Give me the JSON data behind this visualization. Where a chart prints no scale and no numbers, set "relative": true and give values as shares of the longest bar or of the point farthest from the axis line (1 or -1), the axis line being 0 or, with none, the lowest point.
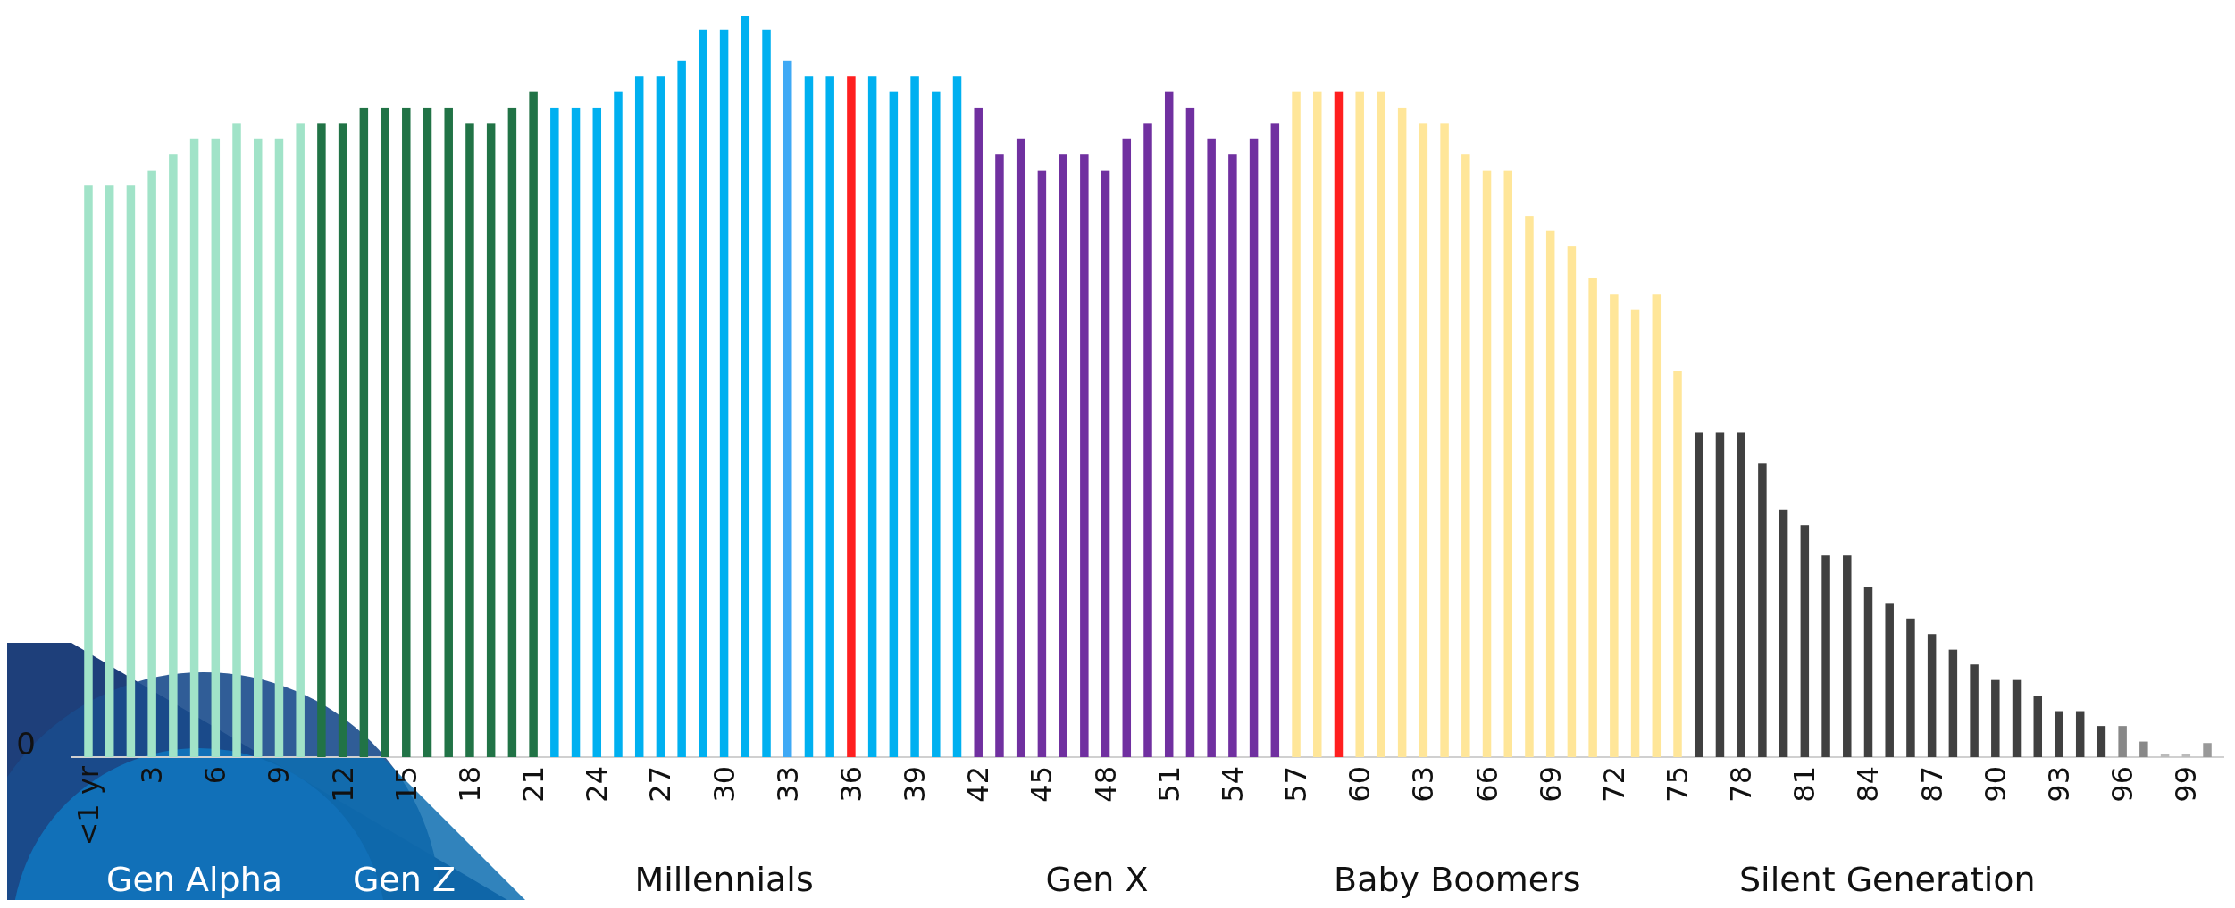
{
  "chart_data": {
    "type": "bar",
    "relative": true,
    "categories": [
      "<1 yr",
      null,
      null,
      "3",
      null,
      null,
      "6",
      null,
      null,
      "9",
      null,
      null,
      "12",
      null,
      null,
      "15",
      null,
      null,
      "18",
      null,
      null,
      "21",
      null,
      null,
      "24",
      null,
      null,
      "27",
      null,
      null,
      "30",
      null,
      null,
      "33",
      null,
      null,
      "36",
      null,
      null,
      "39",
      null,
      null,
      "42",
      null,
      null,
      "45",
      null,
      null,
      "48",
      null,
      null,
      "51",
      null,
      null,
      "54",
      null,
      null,
      "57",
      null,
      null,
      "60",
      null,
      null,
      "63",
      null,
      null,
      "66",
      null,
      null,
      "69",
      null,
      null,
      "72",
      null,
      null,
      "75",
      null,
      null,
      "78",
      null,
      null,
      "81",
      null,
      null,
      "84",
      null,
      null,
      "87",
      null,
      null,
      "90",
      null,
      null,
      "93",
      null,
      null,
      "96",
      null,
      null,
      "99",
      null
    ],
    "values": [
      0.772,
      0.772,
      0.772,
      0.792,
      0.813,
      0.834,
      0.834,
      0.855,
      0.834,
      0.834,
      0.855,
      0.855,
      0.855,
      0.876,
      0.876,
      0.876,
      0.876,
      0.876,
      0.855,
      0.855,
      0.876,
      0.898,
      0.876,
      0.876,
      0.876,
      0.898,
      0.919,
      0.919,
      0.94,
      0.981,
      0.981,
      1,
      0.981,
      0.94,
      0.919,
      0.919,
      0.919,
      0.919,
      0.898,
      0.919,
      0.898,
      0.919,
      0.876,
      0.813,
      0.834,
      0.792,
      0.813,
      0.813,
      0.792,
      0.834,
      0.855,
      0.898,
      0.876,
      0.834,
      0.813,
      0.834,
      0.855,
      0.898,
      0.898,
      0.898,
      0.898,
      0.898,
      0.876,
      0.855,
      0.855,
      0.813,
      0.792,
      0.792,
      0.73,
      0.71,
      0.689,
      0.647,
      0.625,
      0.604,
      0.625,
      0.521,
      0.438,
      0.438,
      0.438,
      0.396,
      0.334,
      0.313,
      0.272,
      0.272,
      0.23,
      0.208,
      0.187,
      0.166,
      0.145,
      0.125,
      0.104,
      0.104,
      0.083,
      0.062,
      0.062,
      0.042,
      0.042,
      0.021,
      0.004,
      0.004,
      0.019
    ],
    "colors": [
      "#a1e3c8",
      "#a1e3c8",
      "#a1e3c8",
      "#a1e3c8",
      "#a1e3c8",
      "#a1e3c8",
      "#a1e3c8",
      "#a1e3c8",
      "#a1e3c8",
      "#a1e3c8",
      "#a1e3c8",
      "#217346",
      "#217346",
      "#217346",
      "#217346",
      "#217346",
      "#217346",
      "#217346",
      "#217346",
      "#217346",
      "#217346",
      "#217346",
      "#00b0f0",
      "#00b0f0",
      "#00b0f0",
      "#00b0f0",
      "#00b0f0",
      "#00b0f0",
      "#00b0f0",
      "#00b0f0",
      "#00b0f0",
      "#00b0f0",
      "#00b0f0",
      "#3fa9f5",
      "#00b0f0",
      "#00b0f0",
      "#ff1f1f",
      "#00b0f0",
      "#00b0f0",
      "#00b0f0",
      "#00b0f0",
      "#00b0f0",
      "#7030a0",
      "#7030a0",
      "#7030a0",
      "#7030a0",
      "#7030a0",
      "#7030a0",
      "#7030a0",
      "#7030a0",
      "#7030a0",
      "#7030a0",
      "#7030a0",
      "#7030a0",
      "#7030a0",
      "#7030a0",
      "#7030a0",
      "#ffe699",
      "#ffe699",
      "#ff1f1f",
      "#ffe699",
      "#ffe699",
      "#ffe699",
      "#ffe699",
      "#ffe699",
      "#ffe699",
      "#ffe699",
      "#ffe699",
      "#ffe699",
      "#ffe699",
      "#ffe699",
      "#ffe699",
      "#ffe699",
      "#ffe699",
      "#ffe699",
      "#ffe699",
      "#404040",
      "#404040",
      "#404040",
      "#404040",
      "#404040",
      "#404040",
      "#404040",
      "#404040",
      "#404040",
      "#404040",
      "#404040",
      "#404040",
      "#404040",
      "#404040",
      "#404040",
      "#404040",
      "#404040",
      "#404040",
      "#404040",
      "#404040",
      "#888888",
      "#888888",
      "#bbbbbb",
      "#bbbbbb",
      "#999999"
    ],
    "annotations": [
      "0",
      "Gen Alpha",
      "Gen Z",
      "Millennials",
      "Gen X",
      "Baby Boomers",
      "Silent Generation"
    ]
  }
}
